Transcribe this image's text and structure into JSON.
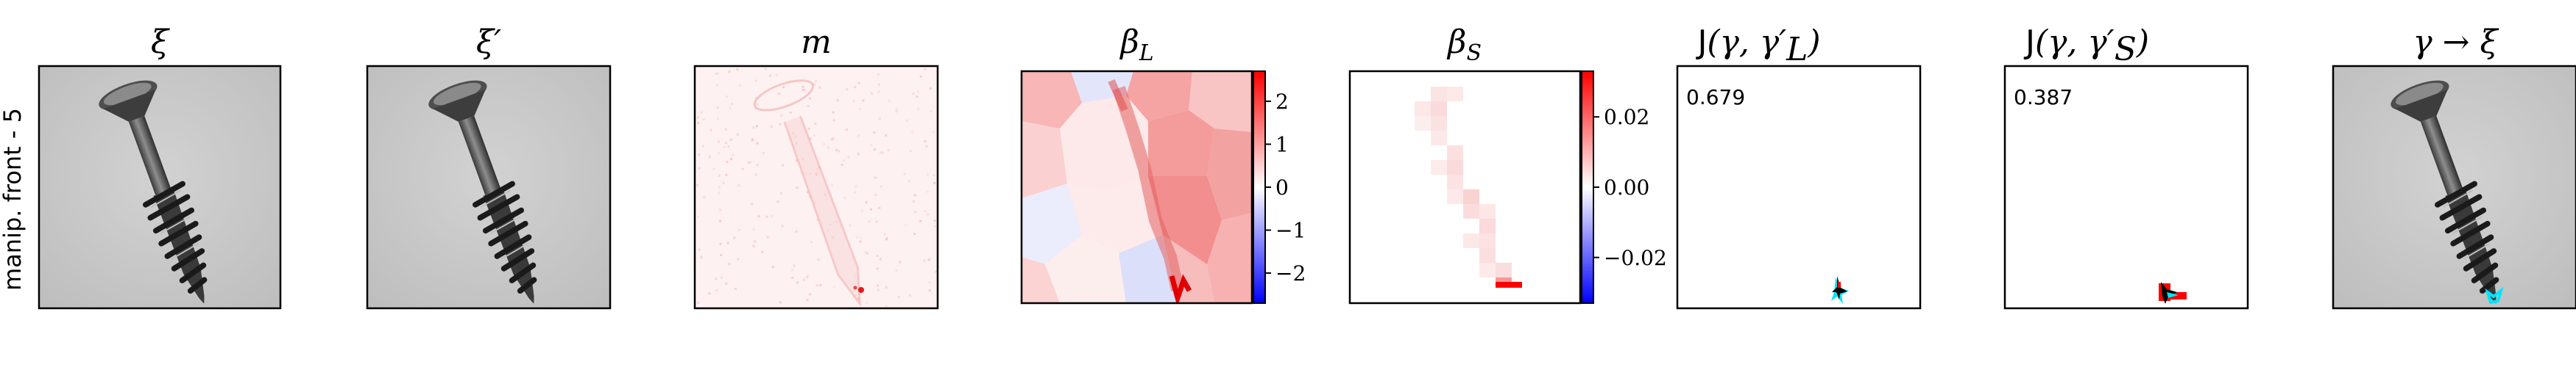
{
  "row_label": "manip. front - 5",
  "panels": [
    {
      "id": "xi",
      "title": "ξ"
    },
    {
      "id": "xi_prime",
      "title": "ξ′"
    },
    {
      "id": "m",
      "title": "m"
    },
    {
      "id": "beta_L",
      "title_main": "β",
      "title_sub": "L"
    },
    {
      "id": "beta_S",
      "title_main": "β",
      "title_sub": "S"
    },
    {
      "id": "J_L",
      "title_fn": "J",
      "title_args": "(γ, γ′",
      "title_sub": "L",
      "title_close": ")",
      "score": "0.679"
    },
    {
      "id": "J_S",
      "title_fn": "J",
      "title_args": "(γ, γ′",
      "title_sub": "S",
      "title_close": ")",
      "score": "0.387"
    },
    {
      "id": "gamma_xi",
      "title": "γ → ξ"
    }
  ],
  "chart_data": [
    {
      "type": "heatmap",
      "title": "β_L",
      "colormap": "bwr",
      "colorbar": {
        "ticks": [
          2,
          1,
          0,
          -1,
          -2
        ],
        "tick_labels": [
          "2",
          "1",
          "0",
          "−1",
          "−2"
        ],
        "range": [
          -2.7,
          2.7
        ]
      }
    },
    {
      "type": "heatmap",
      "title": "β_S",
      "colormap": "bwr",
      "colorbar": {
        "ticks": [
          0.02,
          0.0,
          -0.02
        ],
        "tick_labels": [
          "0.02",
          "0.00",
          "−0.02"
        ],
        "range": [
          -0.033,
          0.033
        ]
      }
    }
  ],
  "colors": {
    "red": "#ff0000",
    "blue": "#0000ff",
    "cyan": "#00e5ff",
    "black": "#000000"
  }
}
